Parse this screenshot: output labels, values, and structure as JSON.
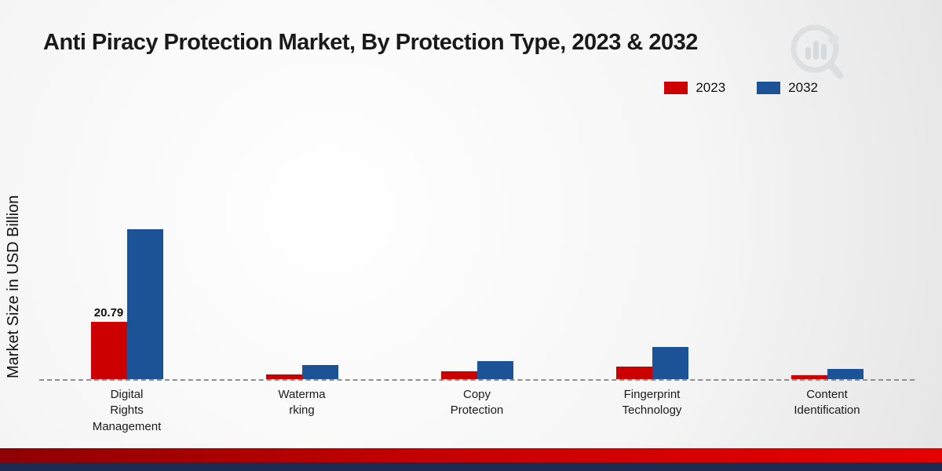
{
  "title": "Anti Piracy Protection Market, By Protection Type, 2023 & 2032",
  "ylabel": "Market Size in USD Billion",
  "chart_data": {
    "type": "bar",
    "title": "Anti Piracy Protection Market, By Protection Type, 2023 & 2032",
    "ylabel": "Market Size in USD Billion",
    "units": "USD Billion",
    "legend_position": "top-right",
    "baseline_style": "dashed",
    "grid": false,
    "ylim": [
      0,
      60
    ],
    "categories": [
      "Digital Rights Management",
      "Watermarking",
      "Copy Protection",
      "Fingerprint Technology",
      "Content Identification"
    ],
    "category_display_lines": [
      "Digital\nRights\nManagement",
      "Waterma\nrking",
      "Copy\nProtection",
      "Fingerprint\nTechnology",
      "Content\nIdentification"
    ],
    "series": [
      {
        "name": "2023",
        "color": "#cc0000",
        "values": [
          20.79,
          1.8,
          2.9,
          4.6,
          1.5
        ]
      },
      {
        "name": "2032",
        "color": "#1c5296",
        "values": [
          54.5,
          5.2,
          6.6,
          11.8,
          3.8
        ]
      }
    ],
    "data_labels": [
      {
        "series": "2023",
        "category": "Digital Rights Management",
        "text": "20.79"
      }
    ]
  }
}
